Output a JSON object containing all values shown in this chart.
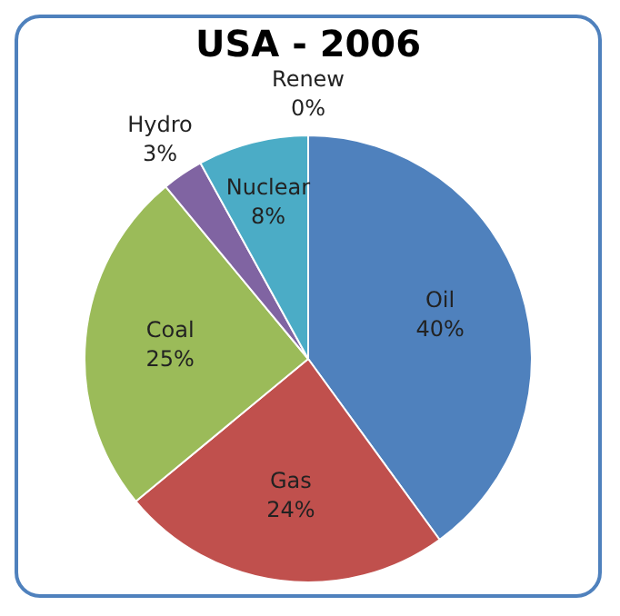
{
  "chart_data": {
    "type": "pie",
    "title": "USA - 2006",
    "categories": [
      "Oil",
      "Gas",
      "Coal",
      "Hydro",
      "Nuclear",
      "Renew"
    ],
    "values": [
      40,
      24,
      25,
      3,
      8,
      0
    ],
    "value_labels": [
      "40%",
      "24%",
      "25%",
      "3%",
      "8%",
      "0%"
    ],
    "colors": [
      "#4f81bd",
      "#c0504d",
      "#9bbb59",
      "#8064a2",
      "#4bacc6",
      "#f79646"
    ],
    "legend": false
  }
}
